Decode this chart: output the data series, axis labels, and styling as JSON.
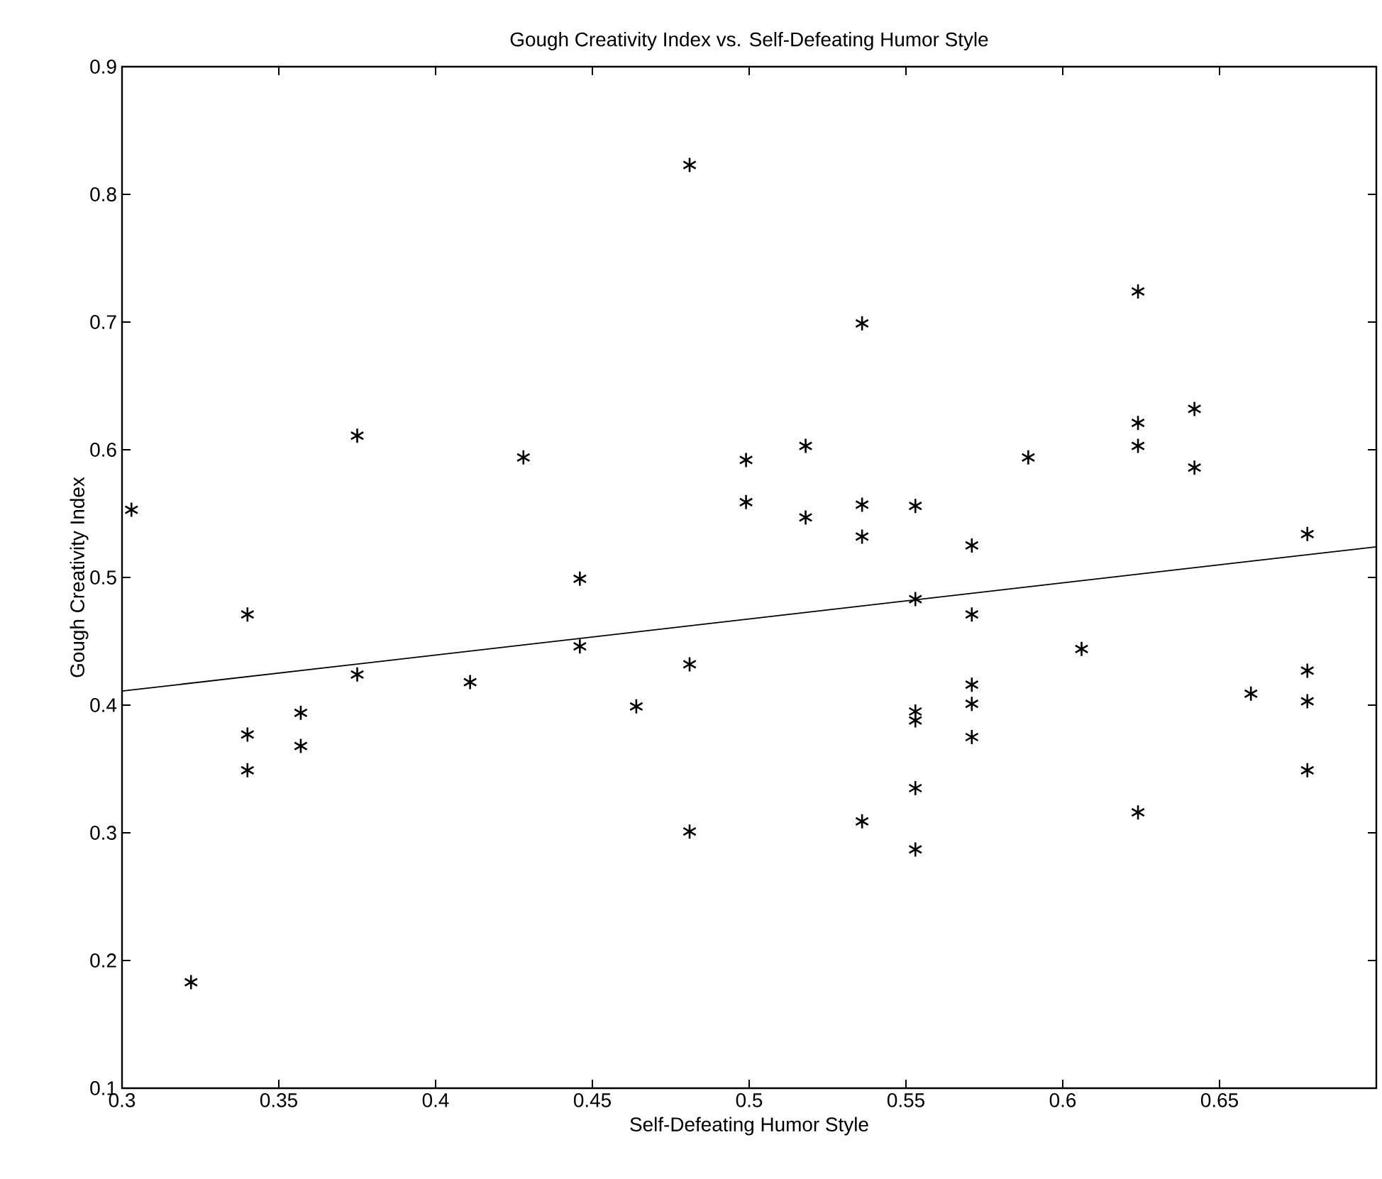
{
  "chart_data": {
    "type": "scatter",
    "title": "Gough Creativity Index vs. Self-Defeating Humor Style",
    "xlabel": "Self-Defeating Humor Style",
    "ylabel": "Gough Creativity Index",
    "xlim": [
      0.3,
      0.7
    ],
    "ylim": [
      0.1,
      0.9
    ],
    "xticks": [
      0.3,
      0.35,
      0.4,
      0.45,
      0.5,
      0.55,
      0.6,
      0.65
    ],
    "yticks": [
      0.1,
      0.2,
      0.3,
      0.4,
      0.5,
      0.6,
      0.7,
      0.8,
      0.9
    ],
    "grid": false,
    "marker": "cross",
    "series": [
      {
        "color": "#000000",
        "x": [
          0.303,
          0.322,
          0.34,
          0.34,
          0.34,
          0.357,
          0.357,
          0.375,
          0.375,
          0.411,
          0.428,
          0.446,
          0.446,
          0.464,
          0.481,
          0.481,
          0.481,
          0.499,
          0.499,
          0.518,
          0.518,
          0.536,
          0.536,
          0.536,
          0.536,
          0.553,
          0.553,
          0.553,
          0.553,
          0.553,
          0.553,
          0.571,
          0.571,
          0.571,
          0.571,
          0.571,
          0.589,
          0.606,
          0.624,
          0.624,
          0.624,
          0.624,
          0.642,
          0.642,
          0.66,
          0.678,
          0.678,
          0.678,
          0.678
        ],
        "values": [
          0.553,
          0.183,
          0.471,
          0.377,
          0.349,
          0.394,
          0.368,
          0.611,
          0.424,
          0.418,
          0.594,
          0.499,
          0.446,
          0.399,
          0.823,
          0.432,
          0.301,
          0.592,
          0.559,
          0.603,
          0.547,
          0.699,
          0.557,
          0.532,
          0.309,
          0.556,
          0.483,
          0.395,
          0.388,
          0.335,
          0.287,
          0.525,
          0.471,
          0.416,
          0.401,
          0.375,
          0.594,
          0.444,
          0.724,
          0.621,
          0.603,
          0.316,
          0.632,
          0.586,
          0.409,
          0.534,
          0.427,
          0.403,
          0.349
        ]
      },
      {
        "type": "line",
        "marker": "none",
        "color": "#000000",
        "x": [
          0.3,
          0.7
        ],
        "values": [
          0.411,
          0.524
        ]
      }
    ]
  }
}
